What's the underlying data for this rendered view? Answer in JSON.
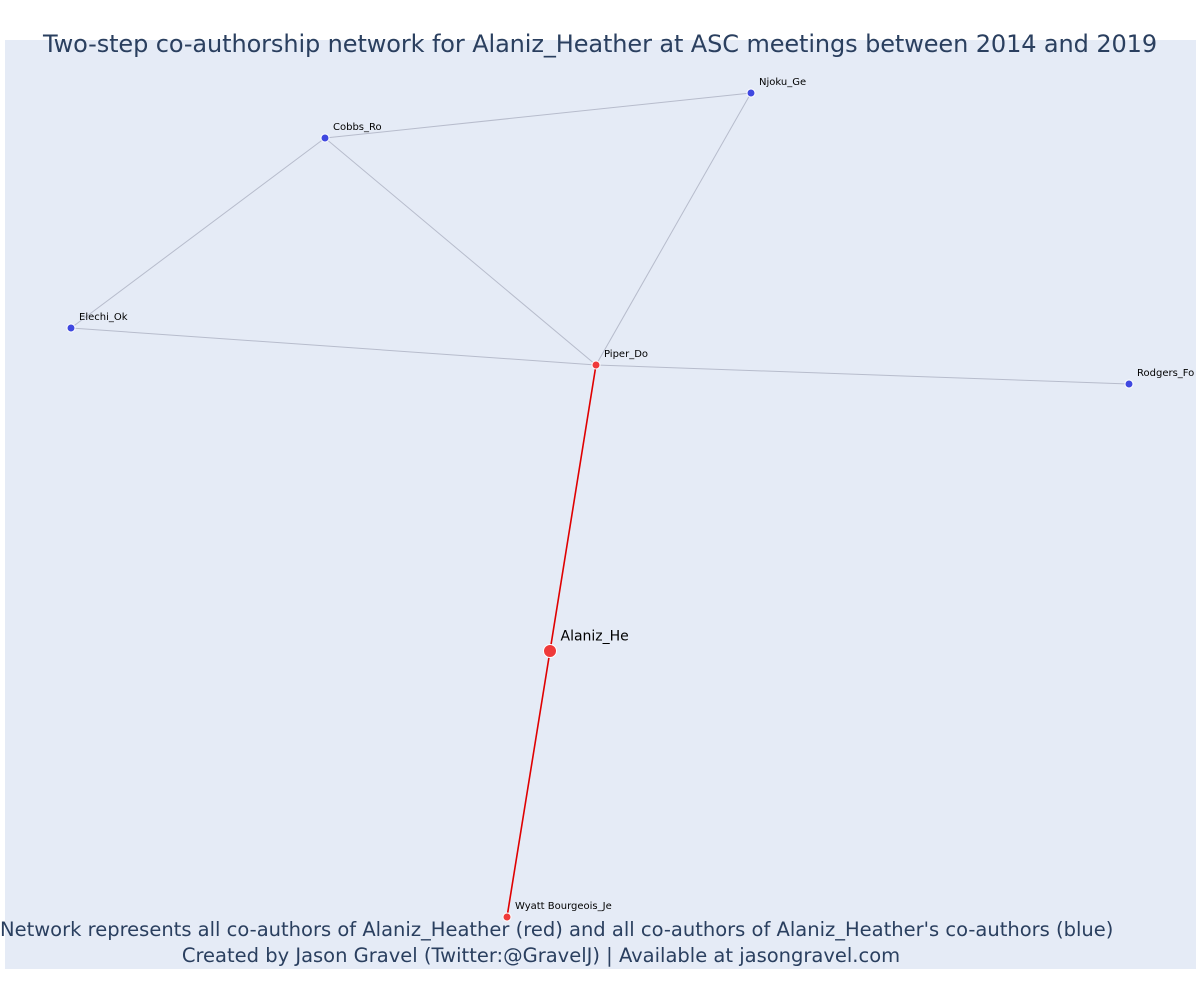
{
  "title": "Two-step co-authorship network for Alaniz_Heather at ASC meetings between 2014 and 2019",
  "caption_line1": "Network represents all co-authors of Alaniz_Heather (red) and all co-authors of Alaniz_Heather's co-authors (blue)",
  "caption_line2": "Created by Jason Gravel (Twitter:@GravelJ) | Available at jasongravel.com",
  "colors": {
    "ego": "#ef3a3a",
    "first_step": "#ef3a3a",
    "second_step": "#3f48e0",
    "first_step_edge": "#e00000",
    "second_step_edge": "#b7bccc",
    "background": "#e5ebf6",
    "title": "#2a3f5f"
  },
  "nodes": [
    {
      "id": "Alaniz_He",
      "label": "Alaniz_He",
      "group": "ego"
    },
    {
      "id": "Piper_Do",
      "label": "Piper_Do",
      "group": "first_step"
    },
    {
      "id": "Wyatt Bourgeois_Je",
      "label": "Wyatt Bourgeois_Je",
      "group": "first_step"
    },
    {
      "id": "Cobbs_Ro",
      "label": "Cobbs_Ro",
      "group": "second_step"
    },
    {
      "id": "Njoku_Ge",
      "label": "Njoku_Ge",
      "group": "second_step"
    },
    {
      "id": "Elechi_Ok",
      "label": "Elechi_Ok",
      "group": "second_step"
    },
    {
      "id": "Rodgers_Fo",
      "label": "Rodgers_Fo",
      "group": "second_step"
    }
  ],
  "edges": [
    {
      "source": "Alaniz_He",
      "target": "Piper_Do",
      "type": "first_step"
    },
    {
      "source": "Alaniz_He",
      "target": "Wyatt Bourgeois_Je",
      "type": "first_step"
    },
    {
      "source": "Piper_Do",
      "target": "Cobbs_Ro",
      "type": "second_step"
    },
    {
      "source": "Piper_Do",
      "target": "Njoku_Ge",
      "type": "second_step"
    },
    {
      "source": "Piper_Do",
      "target": "Elechi_Ok",
      "type": "second_step"
    },
    {
      "source": "Piper_Do",
      "target": "Rodgers_Fo",
      "type": "second_step"
    },
    {
      "source": "Cobbs_Ro",
      "target": "Njoku_Ge",
      "type": "second_step"
    },
    {
      "source": "Cobbs_Ro",
      "target": "Elechi_Ok",
      "type": "second_step"
    }
  ]
}
